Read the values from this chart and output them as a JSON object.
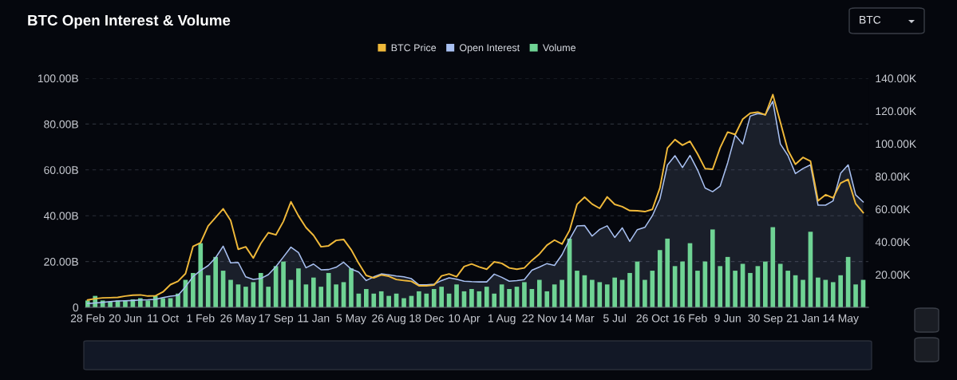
{
  "chart_data": {
    "type": "line",
    "title": "BTC Open Interest & Volume",
    "annotations": [
      "BTC"
    ],
    "categories": [
      "28 Feb",
      null,
      null,
      null,
      null,
      "20 Jun",
      null,
      null,
      null,
      null,
      "11 Oct",
      null,
      null,
      null,
      null,
      "1 Feb",
      null,
      null,
      null,
      null,
      "26 May",
      null,
      null,
      null,
      null,
      "17 Sep",
      null,
      null,
      null,
      null,
      "11 Jan",
      null,
      null,
      null,
      null,
      "5 May",
      null,
      null,
      null,
      null,
      "26 Aug",
      null,
      null,
      null,
      null,
      "18 Dec",
      null,
      null,
      null,
      null,
      "10 Apr",
      null,
      null,
      null,
      null,
      "1 Aug",
      null,
      null,
      null,
      null,
      "22 Nov",
      null,
      null,
      null,
      null,
      "14 Mar",
      null,
      null,
      null,
      null,
      "5 Jul",
      null,
      null,
      null,
      null,
      "26 Oct",
      null,
      null,
      null,
      null,
      "16 Feb",
      null,
      null,
      null,
      null,
      "9 Jun",
      null,
      null,
      null,
      null,
      "30 Sep",
      null,
      null,
      null,
      null,
      "21 Jan",
      null,
      null,
      null,
      null,
      "14 May",
      null,
      null,
      null
    ],
    "ylim": [
      0,
      100
    ],
    "yticks": [
      0,
      {
        "value": 20,
        "label": "20.00B"
      },
      {
        "value": 40,
        "label": "40.00B"
      },
      {
        "value": 60,
        "label": "60.00B"
      },
      {
        "value": 80,
        "label": "80.00B"
      },
      {
        "value": 100,
        "label": "100.00B"
      }
    ],
    "y2lim": [
      0,
      140
    ],
    "y2ticks": [
      {
        "value": 20,
        "label": "20.00K"
      },
      {
        "value": 40,
        "label": "40.00K"
      },
      {
        "value": 60,
        "label": "60.00K"
      },
      {
        "value": 80,
        "label": "80.00K"
      },
      {
        "value": 100,
        "label": "100.00K"
      },
      {
        "value": 120,
        "label": "120.00K"
      },
      {
        "value": 140,
        "label": "140.00K"
      }
    ],
    "grid": "y",
    "legend": "top",
    "series": [
      {
        "name": "BTC Price",
        "axis": "y2",
        "color": "#f0b93a",
        "values": [
          4.5,
          5.3,
          5.8,
          5.9,
          6.1,
          6.9,
          7.4,
          7.6,
          6.9,
          7.0,
          9.4,
          13.9,
          15.9,
          20.6,
          37.2,
          39.4,
          49.7,
          54.9,
          60.2,
          53,
          35.5,
          37,
          30.1,
          39,
          45.6,
          44.3,
          52.5,
          64.5,
          55.9,
          48.8,
          44,
          37,
          37.6,
          40.9,
          41.5,
          35.2,
          26.9,
          19.5,
          18,
          19.8,
          19,
          17,
          16.4,
          15.9,
          13.2,
          13.2,
          13.6,
          19.2,
          20.4,
          18.7,
          24.9,
          26.5,
          24.7,
          23.3,
          27.8,
          26.9,
          24.1,
          23.3,
          24.1,
          28.7,
          32.6,
          38,
          41.1,
          38.7,
          47,
          63,
          67.3,
          63.1,
          60.5,
          67.5,
          62.9,
          61.5,
          59.1,
          59,
          58.5,
          59.9,
          73,
          97.4,
          102.5,
          99.1,
          101.5,
          93.8,
          84.8,
          84.4,
          97.5,
          107.1,
          105.6,
          115,
          118.7,
          119.3,
          117.6,
          130,
          113,
          96,
          87.4,
          91.6,
          89.3,
          65.1,
          68.8,
          66.9,
          75.9,
          78.2,
          63.3,
          57.9
        ]
      },
      {
        "name": "Open Interest",
        "type": "area",
        "color": "#a9c1f2",
        "values": [
          1.7,
          1.9,
          2.2,
          2.5,
          2.8,
          2.9,
          3.0,
          3.2,
          3.3,
          3.5,
          4.3,
          4.9,
          5.2,
          9,
          13.4,
          16.1,
          18.2,
          21.7,
          26.7,
          19.4,
          19.6,
          13.3,
          12.2,
          12.6,
          14.3,
          17.8,
          22,
          26.3,
          23.9,
          17.3,
          18.9,
          16.4,
          16.5,
          17.5,
          19.7,
          16.7,
          15.4,
          11.7,
          13.3,
          14.6,
          14.2,
          13.7,
          13.3,
          12.5,
          9.8,
          9.8,
          10.1,
          11.7,
          12.9,
          12.3,
          11.4,
          11.2,
          11.1,
          11.1,
          14.5,
          13.1,
          11.4,
          11.7,
          12.1,
          16.2,
          17.6,
          19.1,
          18.3,
          23,
          29.7,
          35.5,
          35.7,
          31.1,
          34,
          35.6,
          30.5,
          34.7,
          28.8,
          33.9,
          34.9,
          40,
          47.3,
          62.1,
          66.2,
          61,
          66.3,
          60,
          52.1,
          50.5,
          52.9,
          63.1,
          75.2,
          71.3,
          83.5,
          84.6,
          84.1,
          89.9,
          71.3,
          66.3,
          58.4,
          60.6,
          62.2,
          44.6,
          44.6,
          46.5,
          58.5,
          62.2,
          49.1,
          46
        ]
      },
      {
        "name": "Volume",
        "type": "bar",
        "color": "#6fd394",
        "values": [
          3,
          5,
          3,
          2.5,
          3,
          3,
          3.5,
          4,
          3,
          5,
          4,
          4,
          6,
          12,
          15,
          28,
          14,
          22,
          16,
          12,
          10,
          9,
          11,
          15,
          9,
          18,
          20,
          12,
          17,
          10,
          13,
          9,
          15,
          10,
          11,
          17,
          6,
          8,
          6,
          7,
          5,
          6,
          4,
          5,
          7,
          6,
          8,
          9,
          6,
          10,
          7,
          8,
          7,
          9,
          6,
          10,
          8,
          9,
          11,
          8,
          12,
          7,
          10,
          12,
          30,
          16,
          14,
          12,
          11,
          10,
          13,
          12,
          15,
          20,
          12,
          16,
          25,
          30,
          18,
          20,
          28,
          16,
          20,
          34,
          18,
          22,
          16,
          19,
          15,
          18,
          20,
          35,
          19,
          16,
          14,
          12,
          33,
          13,
          12,
          11,
          14,
          22,
          10,
          12
        ]
      }
    ]
  }
}
